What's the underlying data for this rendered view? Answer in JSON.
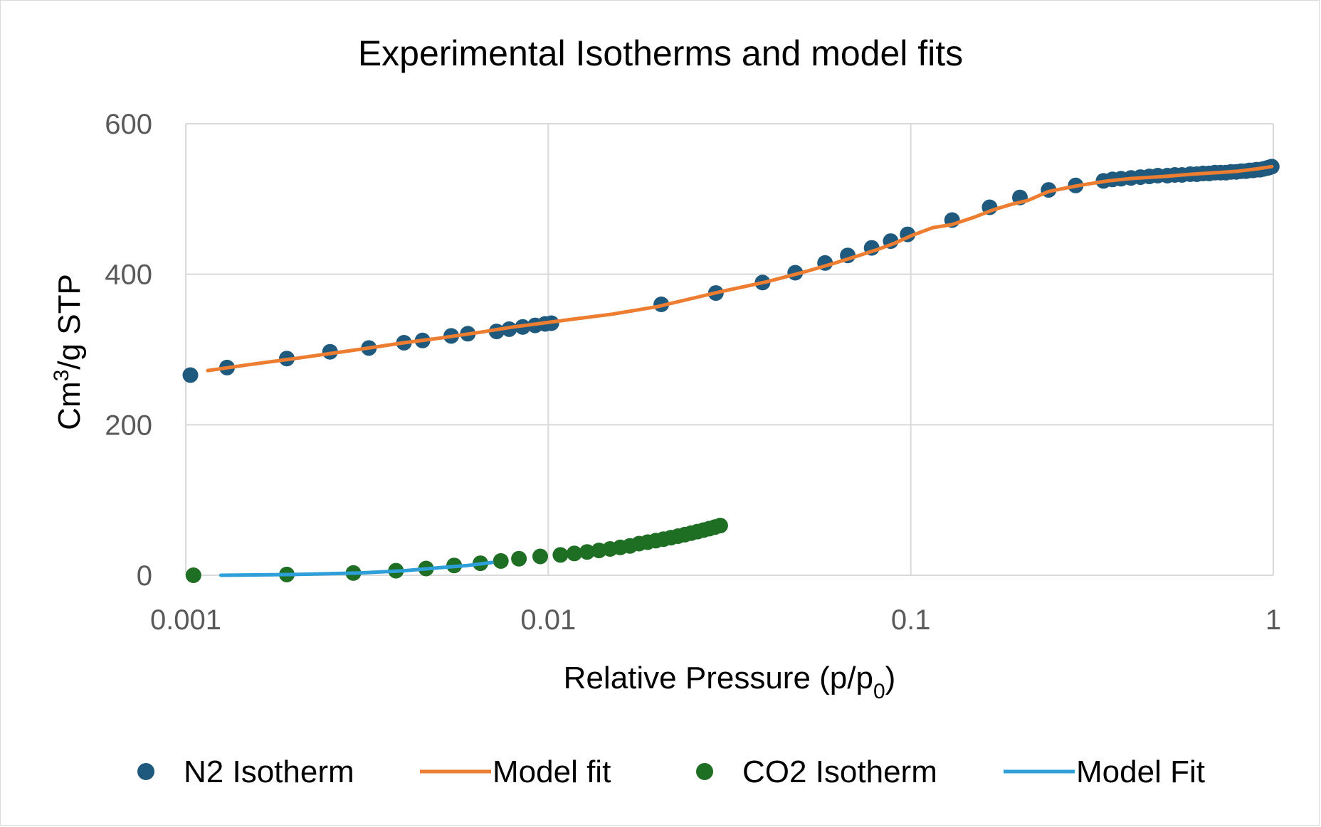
{
  "chart_data": {
    "type": "scatter",
    "title": "Experimental Isotherms and model fits",
    "xlabel": {
      "main": "Relative Pressure (p/p",
      "sub": "0",
      "close": ")"
    },
    "ylabel": {
      "main": "Cm",
      "sup": "3",
      "rest": "/g STP"
    },
    "xscale": "log",
    "xlim": [
      0.001,
      1
    ],
    "ylim": [
      0,
      600
    ],
    "grid": true,
    "legend_position": "bottom",
    "x_ticks": [
      {
        "value": 0.001,
        "label": "0.001"
      },
      {
        "value": 0.01,
        "label": "0.01"
      },
      {
        "value": 0.1,
        "label": "0.1"
      },
      {
        "value": 1,
        "label": "1"
      }
    ],
    "y_ticks": [
      {
        "value": 0,
        "label": "0"
      },
      {
        "value": 200,
        "label": "200"
      },
      {
        "value": 400,
        "label": "400"
      },
      {
        "value": 600,
        "label": "600"
      }
    ],
    "series": [
      {
        "name": "N2 Isotherm",
        "kind": "points",
        "color": "#1f5a7e",
        "x": [
          0.00103,
          0.0013,
          0.0019,
          0.0025,
          0.0032,
          0.004,
          0.0045,
          0.0054,
          0.006,
          0.0072,
          0.0078,
          0.0085,
          0.0092,
          0.0098,
          0.0102,
          0.0205,
          0.029,
          0.039,
          0.048,
          0.058,
          0.067,
          0.078,
          0.088,
          0.098,
          0.13,
          0.165,
          0.2,
          0.24,
          0.285,
          0.34,
          0.36,
          0.38,
          0.405,
          0.43,
          0.455,
          0.48,
          0.51,
          0.535,
          0.56,
          0.59,
          0.615,
          0.64,
          0.665,
          0.69,
          0.715,
          0.74,
          0.765,
          0.79,
          0.815,
          0.84,
          0.86,
          0.88,
          0.9,
          0.92,
          0.94,
          0.96,
          0.975,
          0.99
        ],
        "y": [
          266,
          276,
          288,
          297,
          302,
          309,
          312,
          318,
          321,
          324,
          327,
          330,
          332,
          334,
          335,
          360,
          375,
          389,
          402,
          415,
          425,
          435,
          444,
          453,
          472,
          489,
          502,
          512,
          518,
          524,
          526,
          527,
          528,
          529,
          530,
          531,
          531,
          532,
          532,
          533,
          533,
          534,
          534,
          535,
          535,
          535,
          536,
          536,
          537,
          537,
          538,
          538,
          539,
          539,
          540,
          541,
          542,
          543
        ]
      },
      {
        "name": "Model fit",
        "kind": "line",
        "color": "#ed7d31",
        "x": [
          0.00115,
          0.0015,
          0.002,
          0.003,
          0.004,
          0.005,
          0.0065,
          0.008,
          0.01,
          0.012,
          0.015,
          0.02,
          0.025,
          0.03,
          0.04,
          0.05,
          0.06,
          0.07,
          0.08,
          0.09,
          0.1,
          0.115,
          0.13,
          0.15,
          0.17,
          0.19,
          0.21,
          0.24,
          0.27,
          0.3,
          0.35,
          0.4,
          0.5,
          0.6,
          0.7,
          0.8,
          0.9,
          0.99
        ],
        "y": [
          272,
          280,
          288,
          300,
          309,
          315,
          323,
          330,
          336,
          341,
          347,
          357,
          368,
          377,
          390,
          402,
          413,
          423,
          432,
          441,
          451,
          462,
          466,
          476,
          486,
          493,
          498,
          510,
          515,
          519,
          524,
          527,
          530,
          533,
          535,
          537,
          540,
          543
        ]
      },
      {
        "name": "CO2 Isotherm",
        "kind": "points",
        "color": "#1e6e23",
        "x": [
          0.00105,
          0.0019,
          0.0029,
          0.0038,
          0.0046,
          0.0055,
          0.0065,
          0.0074,
          0.0083,
          0.0095,
          0.0108,
          0.0118,
          0.0128,
          0.0138,
          0.0148,
          0.0158,
          0.0168,
          0.0178,
          0.0188,
          0.0198,
          0.0208,
          0.0218,
          0.0228,
          0.0238,
          0.0248,
          0.0258,
          0.0268,
          0.0278,
          0.0288,
          0.0298
        ],
        "y": [
          0,
          1,
          3,
          6,
          9,
          13,
          16,
          19,
          22,
          25,
          27,
          29,
          31,
          33,
          35,
          37,
          39,
          42,
          44,
          46,
          48,
          50,
          52,
          54,
          56,
          58,
          60,
          62,
          64,
          66
        ]
      },
      {
        "name": "Model Fit",
        "kind": "line",
        "color": "#2e9fd8",
        "x": [
          0.00125,
          0.002,
          0.003,
          0.004,
          0.005,
          0.006,
          0.007
        ],
        "y": [
          0,
          1,
          3,
          6,
          10,
          13,
          17
        ]
      }
    ]
  }
}
